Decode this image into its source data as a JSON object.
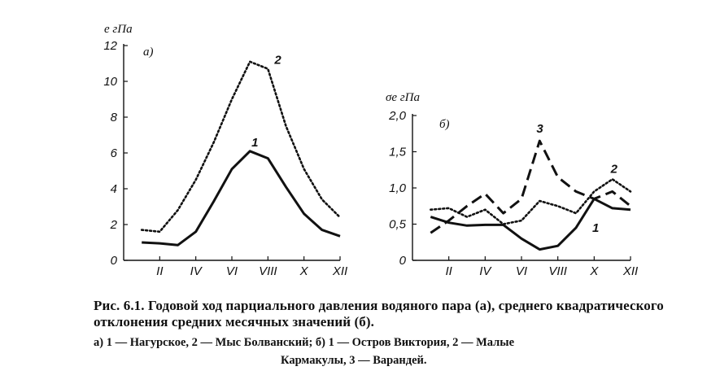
{
  "chart_data": [
    {
      "type": "line",
      "panel_label": "а)",
      "ylabel": "e гПа",
      "ylim": [
        0,
        12
      ],
      "yticks": [
        0,
        2,
        4,
        6,
        8,
        10,
        12
      ],
      "ytick_labels": [
        "0",
        "2",
        "4",
        "6",
        "8",
        "10",
        "12"
      ],
      "xlim": [
        0,
        12
      ],
      "xticks": [
        2,
        4,
        6,
        8,
        10,
        12
      ],
      "xtick_labels": [
        "II",
        "IV",
        "VI",
        "VIII",
        "X",
        "XII"
      ],
      "grid": false,
      "series": [
        {
          "name": "1",
          "style": "solid",
          "x": [
            1,
            2,
            3,
            4,
            5,
            6,
            7,
            8,
            9,
            10,
            11,
            12
          ],
          "y": [
            1.0,
            0.95,
            0.85,
            1.6,
            3.3,
            5.1,
            6.1,
            5.7,
            4.1,
            2.6,
            1.7,
            1.35
          ]
        },
        {
          "name": "2",
          "style": "dotted",
          "x": [
            1,
            2,
            3,
            4,
            5,
            6,
            7,
            8,
            9,
            10,
            11,
            12
          ],
          "y": [
            1.7,
            1.6,
            2.8,
            4.5,
            6.6,
            9.0,
            11.1,
            10.7,
            7.5,
            5.1,
            3.4,
            2.4
          ]
        }
      ]
    },
    {
      "type": "line",
      "panel_label": "б)",
      "ylabel": "σe гПа",
      "ylim": [
        0,
        2.0
      ],
      "yticks": [
        0,
        0.5,
        1.0,
        1.5,
        2.0
      ],
      "ytick_labels": [
        "0",
        "0,5",
        "1,0",
        "1,5",
        "2,0"
      ],
      "xlim": [
        0,
        12
      ],
      "xticks": [
        2,
        4,
        6,
        8,
        10,
        12
      ],
      "xtick_labels": [
        "II",
        "IV",
        "VI",
        "VIII",
        "X",
        "XII"
      ],
      "grid": false,
      "series": [
        {
          "name": "1",
          "style": "solid",
          "x": [
            1,
            2,
            3,
            4,
            5,
            6,
            7,
            8,
            9,
            10,
            11,
            12
          ],
          "y": [
            0.6,
            0.52,
            0.48,
            0.49,
            0.49,
            0.3,
            0.15,
            0.2,
            0.45,
            0.85,
            0.72,
            0.7
          ]
        },
        {
          "name": "2",
          "style": "dotted",
          "x": [
            1,
            2,
            3,
            4,
            5,
            6,
            7,
            8,
            9,
            10,
            11,
            12
          ],
          "y": [
            0.7,
            0.72,
            0.6,
            0.7,
            0.5,
            0.55,
            0.82,
            0.75,
            0.65,
            0.95,
            1.12,
            0.95
          ]
        },
        {
          "name": "3",
          "style": "dashed",
          "x": [
            1,
            2,
            3,
            4,
            5,
            6,
            7,
            8,
            9,
            10,
            11,
            12
          ],
          "y": [
            0.38,
            0.55,
            0.75,
            0.92,
            0.65,
            0.85,
            1.65,
            1.15,
            0.95,
            0.85,
            0.95,
            0.75
          ]
        }
      ]
    }
  ],
  "caption": {
    "main": "Рис. 6.1. Годовой ход парциального давления водяного пара (а), среднего квадратического отклонения средних месячных значений (б).",
    "legend_line1": "а) 1 — Нагурское, 2 — Мыс Болванский; б) 1 — Остров Виктория, 2 — Малые",
    "legend_line2": "Кармакулы, 3 — Варандей."
  }
}
